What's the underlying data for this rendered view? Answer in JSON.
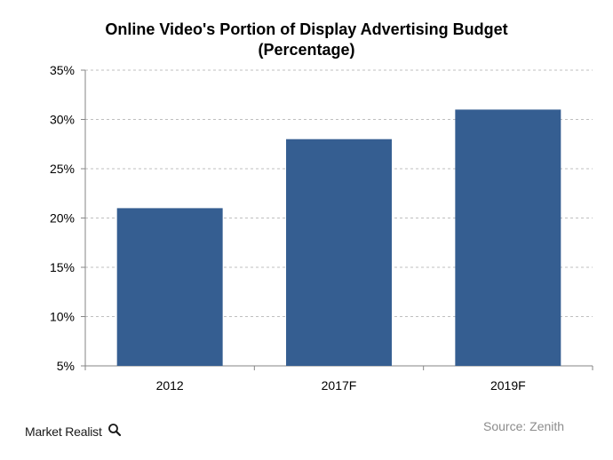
{
  "chart_data": {
    "type": "bar",
    "title_lines": [
      "Online Video's Portion of Display Advertising Budget",
      "(Percentage)"
    ],
    "categories": [
      "2012",
      "2017F",
      "2019F"
    ],
    "values": [
      21,
      28,
      31
    ],
    "ylim": [
      5,
      35
    ],
    "yticks": [
      "5%",
      "10%",
      "15%",
      "20%",
      "25%",
      "30%",
      "35%"
    ],
    "ytick_values": [
      5,
      10,
      15,
      20,
      25,
      30,
      35
    ],
    "grid": "horizontal dashed",
    "bar_color": "#355E91",
    "grid_color": "#BFBFBF"
  },
  "source": "Source: Zenith",
  "brand": {
    "text": "Market Realist",
    "icon": "magnifier-icon"
  }
}
